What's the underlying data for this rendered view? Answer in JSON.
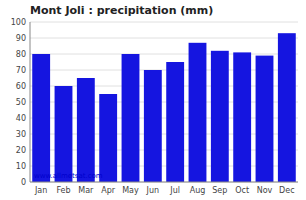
{
  "chart_data": {
    "type": "bar",
    "title": "Mont Joli : precipitation (mm)",
    "categories": [
      "Jan",
      "Feb",
      "Mar",
      "Apr",
      "May",
      "Jun",
      "Jul",
      "Aug",
      "Sep",
      "Oct",
      "Nov",
      "Dec"
    ],
    "values": [
      80,
      60,
      65,
      55,
      80,
      70,
      75,
      87,
      82,
      81,
      79,
      93
    ],
    "color": "#1515e0",
    "ylim": [
      0,
      100
    ],
    "yticks": [
      0,
      10,
      20,
      30,
      40,
      50,
      60,
      70,
      80,
      90,
      100
    ],
    "grid": true,
    "annotations": [
      "www.allmetsat.com"
    ]
  }
}
